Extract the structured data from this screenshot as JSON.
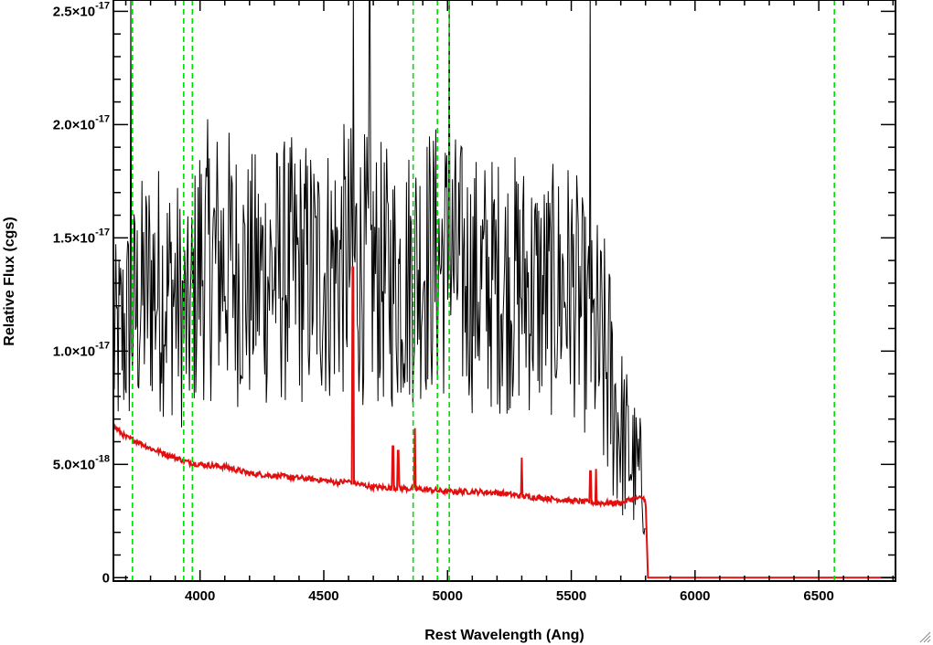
{
  "chart_data": {
    "type": "line",
    "title": "",
    "xlabel": "Rest Wavelength (Ang)",
    "ylabel": "Relative Flux (cgs)",
    "xlim": [
      3650,
      6810
    ],
    "ylim": [
      -1.5e-19,
      2.55e-17
    ],
    "x_ticks": [
      4000,
      4500,
      5000,
      5500,
      6000,
      6500
    ],
    "y_ticks": [
      {
        "value": 0,
        "mantissa": "0",
        "exponent": ""
      },
      {
        "value": 5e-18,
        "mantissa": "5.0×10",
        "exponent": "-18"
      },
      {
        "value": 1e-17,
        "mantissa": "1.0×10",
        "exponent": "-17"
      },
      {
        "value": 1.5e-17,
        "mantissa": "1.5×10",
        "exponent": "-17"
      },
      {
        "value": 2e-17,
        "mantissa": "2.0×10",
        "exponent": "-17"
      },
      {
        "value": 2.5e-17,
        "mantissa": "2.5×10",
        "exponent": "-17"
      }
    ],
    "series": [
      {
        "color": "#000000",
        "style": "noisy observed spectrum",
        "wavelength_start": 3650,
        "wavelength_end": 5800,
        "x": [
          3650,
          3700,
          3800,
          3900,
          3950,
          4000,
          4100,
          4200,
          4300,
          4400,
          4500,
          4600,
          4700,
          4800,
          4900,
          5000,
          5100,
          5200,
          5300,
          5400,
          5500,
          5600,
          5650,
          5700,
          5750,
          5800
        ],
        "y": [
          1e-17,
          1.1e-17,
          1.3e-17,
          1.25e-17,
          1.1e-17,
          1.4e-17,
          1.4e-17,
          1.3e-17,
          1.35e-17,
          1.35e-17,
          1.35e-17,
          1.4e-17,
          1.35e-17,
          1.3e-17,
          1.4e-17,
          1.4e-17,
          1.3e-17,
          1.3e-17,
          1.3e-17,
          1.25e-17,
          1.3e-17,
          1e-17,
          9e-18,
          6.5e-18,
          5e-18,
          4e-18
        ],
        "spikes": [
          {
            "x": 3720,
            "y": 2.6e-17
          },
          {
            "x": 4620,
            "y": 2.6e-17
          },
          {
            "x": 4685,
            "y": 2.6e-17
          },
          {
            "x": 5007,
            "y": 2.6e-17
          },
          {
            "x": 5577,
            "y": 2.6e-17
          }
        ]
      },
      {
        "color": "#e01010",
        "style": "model continuum",
        "x": [
          3650,
          3700,
          3750,
          3800,
          3850,
          3900,
          3950,
          4000,
          4100,
          4200,
          4300,
          4400,
          4500,
          4550,
          4600,
          4650,
          4700,
          4800,
          4900,
          5000,
          5100,
          5200,
          5300,
          5400,
          5500,
          5600,
          5650,
          5700,
          5750,
          5790,
          5800,
          5810,
          6810
        ],
        "y": [
          6.7e-18,
          6.2e-18,
          6e-18,
          5.7e-18,
          5.5e-18,
          5.3e-18,
          5.1e-18,
          5e-18,
          4.9e-18,
          4.6e-18,
          4.5e-18,
          4.4e-18,
          4.3e-18,
          4.2e-18,
          4.25e-18,
          4.1e-18,
          4e-18,
          3.95e-18,
          3.9e-18,
          3.8e-18,
          3.8e-18,
          3.75e-18,
          3.6e-18,
          3.5e-18,
          3.4e-18,
          3.3e-18,
          3.3e-18,
          3.3e-18,
          3.5e-18,
          3.5e-18,
          3.5e-18,
          0,
          0
        ],
        "emission_lines": [
          {
            "x": 4617,
            "y": 1.37e-17
          },
          {
            "x": 4780,
            "y": 5.8e-18
          },
          {
            "x": 4800,
            "y": 5.6e-18
          },
          {
            "x": 4868,
            "y": 6.6e-18
          },
          {
            "x": 5300,
            "y": 5.3e-18
          },
          {
            "x": 5578,
            "y": 4.7e-18
          },
          {
            "x": 5600,
            "y": 4.8e-18
          }
        ]
      }
    ],
    "vertical_markers": {
      "color": "#00dd00",
      "style": "dashed",
      "x": [
        3727,
        3934,
        3969,
        4861,
        4959,
        5007,
        6563
      ]
    },
    "grid": false
  }
}
